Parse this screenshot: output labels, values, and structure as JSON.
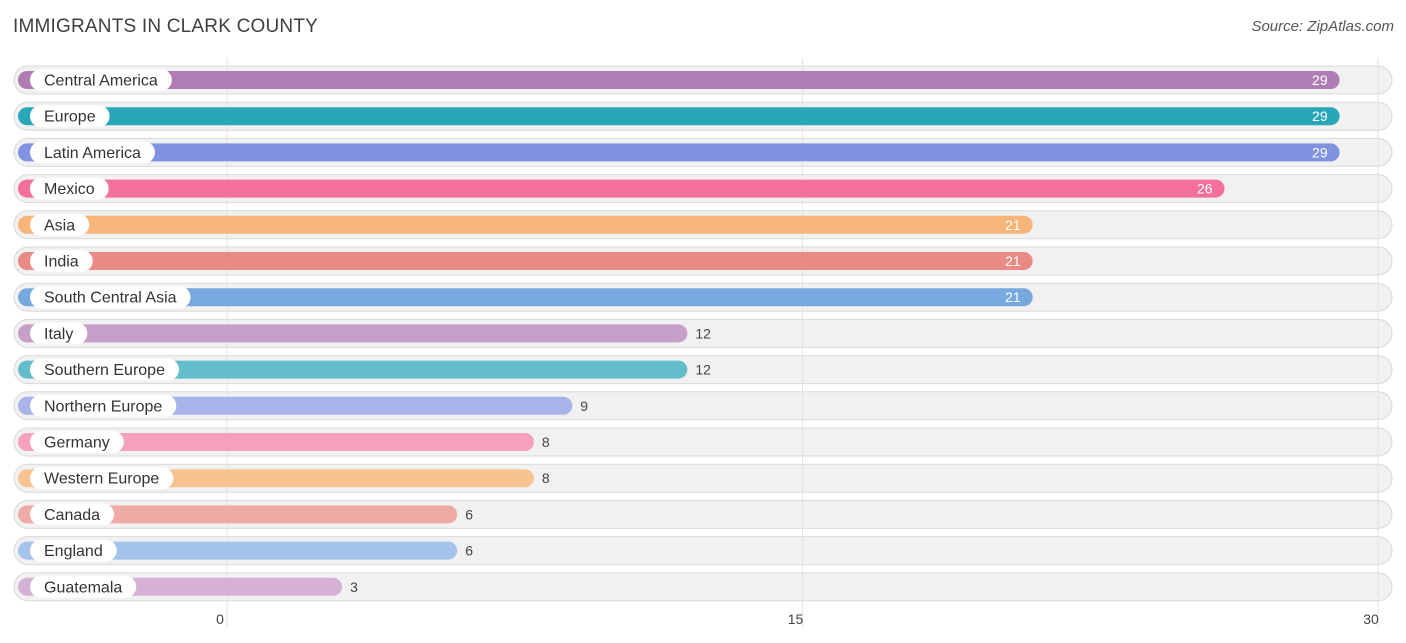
{
  "chart_data": {
    "type": "bar",
    "orientation": "horizontal",
    "title": "IMMIGRANTS IN CLARK COUNTY",
    "source": "Source: ZipAtlas.com",
    "xlim": [
      0,
      30
    ],
    "ticks": [
      0,
      15,
      30
    ],
    "categories": [
      "Central America",
      "Europe",
      "Latin America",
      "Mexico",
      "Asia",
      "India",
      "South Central Asia",
      "Italy",
      "Southern Europe",
      "Northern Europe",
      "Germany",
      "Western Europe",
      "Canada",
      "England",
      "Guatemala"
    ],
    "values": [
      29,
      29,
      29,
      26,
      21,
      21,
      21,
      12,
      12,
      9,
      8,
      8,
      6,
      6,
      3
    ],
    "colors": [
      "#b07cb4",
      "#2aa6b9",
      "#8092e0",
      "#f2709b",
      "#f8b57a",
      "#e98a84",
      "#78a9de",
      "#c59fc8",
      "#63bdca",
      "#a8b4e9",
      "#f5a0bf",
      "#f9c291",
      "#eeaba6",
      "#a3c3ea",
      "#d5b1d5"
    ]
  }
}
